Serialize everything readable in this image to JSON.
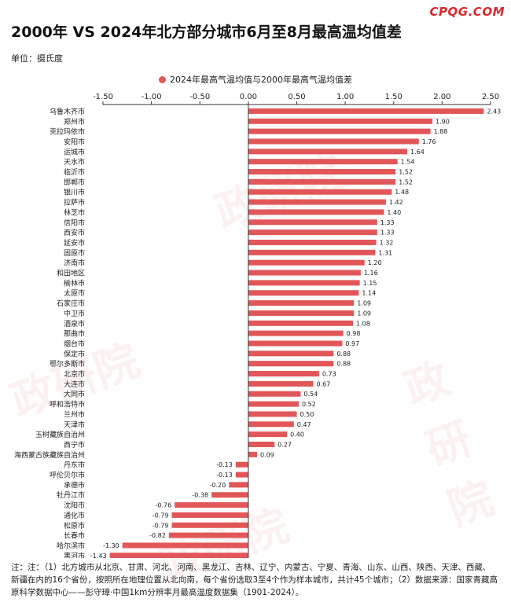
{
  "brand": "CPQG.COM",
  "title": "2000年 VS 2024年北方部分城市6月至8月最高温均值差",
  "unit_label": "单位：摄氏度",
  "watermark": "政研院",
  "note": "注：注：（1）北方城市从北京、甘肃、河北、河南、黑龙江、吉林、辽宁、内蒙古、宁夏、青海、山东、山西、陕西、天津、西藏、新疆在内的16个省份，按照所在地理位置从北向南，每个省份选取3至4个作为样本城市，共计45个城市；（2）数据来源：国家青藏高原科学数据中心——彭守璋·中国1km分辨率月最高温度数据集（1901-2024）。",
  "colors": {
    "bar": "#e15759",
    "brand": "#d9272e"
  },
  "chart_data": {
    "type": "bar",
    "orientation": "horizontal",
    "series": [
      {
        "name": "2024年最高气温均值与2000年最高气温均值差"
      }
    ],
    "categories": [
      "乌鲁木齐市",
      "郑州市",
      "克拉玛依市",
      "安阳市",
      "运城市",
      "天水市",
      "临沂市",
      "邯郸市",
      "银川市",
      "拉萨市",
      "林芝市",
      "信阳市",
      "西安市",
      "延安市",
      "固原市",
      "济南市",
      "和田地区",
      "榆林市",
      "太原市",
      "石家庄市",
      "中卫市",
      "酒泉市",
      "那曲市",
      "烟台市",
      "保定市",
      "鄂尔多斯市",
      "北京市",
      "大连市",
      "大同市",
      "呼和浩特市",
      "兰州市",
      "天津市",
      "玉树藏族自治州",
      "西宁市",
      "海西蒙古族藏族自治州",
      "丹东市",
      "呼伦贝尔市",
      "承德市",
      "牡丹江市",
      "沈阳市",
      "通化市",
      "松原市",
      "长春市",
      "哈尔滨市",
      "黑河市"
    ],
    "values": [
      2.43,
      1.9,
      1.88,
      1.76,
      1.64,
      1.54,
      1.52,
      1.52,
      1.48,
      1.42,
      1.4,
      1.33,
      1.33,
      1.32,
      1.31,
      1.2,
      1.16,
      1.15,
      1.14,
      1.09,
      1.09,
      1.08,
      0.98,
      0.97,
      0.88,
      0.88,
      0.73,
      0.67,
      0.54,
      0.52,
      0.5,
      0.47,
      0.4,
      0.27,
      0.09,
      -0.13,
      -0.13,
      -0.2,
      -0.38,
      -0.76,
      -0.79,
      -0.79,
      -0.82,
      -1.3,
      -1.43
    ],
    "value_labels": [
      "2.43",
      "1.90",
      "1.88",
      "1.76",
      "1.64",
      "1.54",
      "1.52",
      "1.52",
      "1.48",
      "1.42",
      "1.40",
      "1.33",
      "1.33",
      "1.32",
      "1.31",
      "1.20",
      "1.16",
      "1.15",
      "1.14",
      "1.09",
      "1.09",
      "1.08",
      "0.98",
      "0.97",
      "0.88",
      "0.88",
      "0.73",
      "0.67",
      "0.54",
      "0.52",
      "0.50",
      "0.47",
      "0.40",
      "0.27",
      "0.09",
      "-0.13",
      "-0.13",
      "-0.20",
      "-0.38",
      "-0.76",
      "-0.79",
      "-0.79",
      "-0.82",
      "-1.30",
      "-1.43"
    ],
    "xlim": [
      -1.5,
      2.5
    ],
    "xticks": [
      -1.5,
      -1.0,
      -0.5,
      0.0,
      0.5,
      1.0,
      1.5,
      2.0,
      2.5
    ],
    "xtick_labels": [
      "-1.50",
      "-1.00",
      "-0.50",
      "0.00",
      "0.50",
      "1.00",
      "1.50",
      "2.00",
      "2.50"
    ],
    "axis_position": "top",
    "legend_position": "top",
    "grid": false
  }
}
